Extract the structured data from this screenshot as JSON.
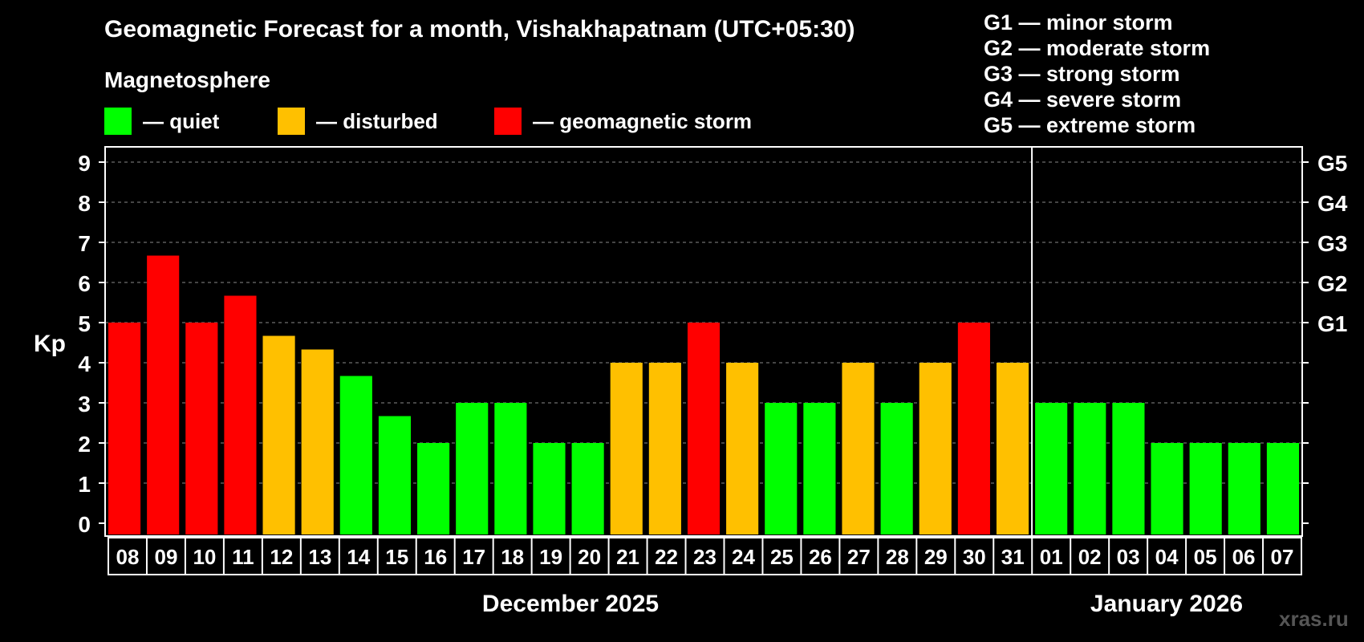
{
  "title": "Geomagnetic Forecast for a month, Vishakhapatnam (UTC+05:30)",
  "magnetosphere_label": "Magnetosphere",
  "legend": [
    {
      "label": "— quiet",
      "color": "#00ff00"
    },
    {
      "label": "— disturbed",
      "color": "#ffc000"
    },
    {
      "label": "— geomagnetic storm",
      "color": "#ff0000"
    }
  ],
  "g_scale_legend": [
    "G1 — minor storm",
    "G2 — moderate storm",
    "G3 — strong storm",
    "G4 — severe storm",
    "G5 — extreme storm"
  ],
  "watermark": "xras.ru",
  "months": [
    "December 2025",
    "January 2026"
  ],
  "chart_data": {
    "type": "bar",
    "ylabel": "Kp",
    "ylim": [
      0,
      9
    ],
    "yticks": [
      "0",
      "1",
      "2",
      "3",
      "4",
      "5",
      "6",
      "7",
      "8",
      "9"
    ],
    "right_axis_labels": [
      {
        "kp": 5,
        "label": "G1"
      },
      {
        "kp": 6,
        "label": "G2"
      },
      {
        "kp": 7,
        "label": "G3"
      },
      {
        "kp": 8,
        "label": "G4"
      },
      {
        "kp": 9,
        "label": "G5"
      }
    ],
    "grid": "dashed horizontal lines",
    "categories": [
      "08",
      "09",
      "10",
      "11",
      "12",
      "13",
      "14",
      "15",
      "16",
      "17",
      "18",
      "19",
      "20",
      "21",
      "22",
      "23",
      "24",
      "25",
      "26",
      "27",
      "28",
      "29",
      "30",
      "31",
      "01",
      "02",
      "03",
      "04",
      "05",
      "06",
      "07"
    ],
    "values": [
      5,
      6.67,
      5,
      5.67,
      4.67,
      4.33,
      3.67,
      2.67,
      2,
      3,
      3,
      2,
      2,
      4,
      4,
      5,
      4,
      3,
      3,
      4,
      3,
      4,
      5,
      4,
      3,
      3,
      3,
      2,
      2,
      2,
      2
    ],
    "status": [
      "storm",
      "storm",
      "storm",
      "storm",
      "disturbed",
      "disturbed",
      "quiet",
      "quiet",
      "quiet",
      "quiet",
      "quiet",
      "quiet",
      "quiet",
      "disturbed",
      "disturbed",
      "storm",
      "disturbed",
      "quiet",
      "quiet",
      "disturbed",
      "quiet",
      "disturbed",
      "storm",
      "disturbed",
      "quiet",
      "quiet",
      "quiet",
      "quiet",
      "quiet",
      "quiet",
      "quiet"
    ],
    "status_colors": {
      "quiet": "#00ff00",
      "disturbed": "#ffc000",
      "storm": "#ff0000"
    },
    "month_boundary_after_index": 23
  }
}
